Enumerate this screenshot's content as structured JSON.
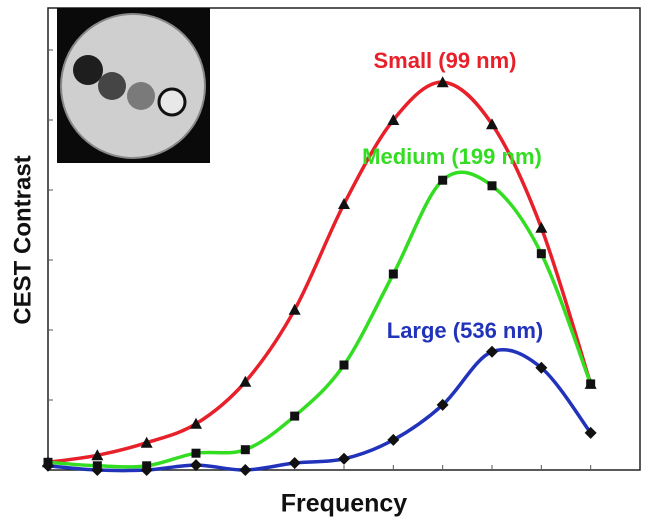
{
  "chart_data": {
    "type": "line",
    "x_label": "Frequency",
    "y_label": "CEST Contrast",
    "x": [
      0,
      1,
      2,
      3,
      4,
      5,
      6,
      7,
      8,
      9,
      10,
      11
    ],
    "series": [
      {
        "name": "Small (99 nm)",
        "color": "#e8202a",
        "marker": "triangle",
        "values": [
          0.11,
          0.21,
          0.39,
          0.66,
          1.26,
          2.29,
          3.8,
          5.0,
          5.54,
          4.94,
          3.46,
          1.23
        ]
      },
      {
        "name": "Medium (199 nm)",
        "color": "#33dd22",
        "marker": "square",
        "values": [
          0.11,
          0.06,
          0.06,
          0.24,
          0.29,
          0.77,
          1.5,
          2.8,
          4.14,
          4.06,
          3.09,
          1.23
        ]
      },
      {
        "name": "Large (536 nm)",
        "color": "#2233bb",
        "marker": "diamond",
        "values": [
          0.06,
          0,
          0,
          0.07,
          0,
          0.1,
          0.16,
          0.43,
          0.93,
          1.69,
          1.46,
          0.53
        ]
      }
    ],
    "xlim": [
      0,
      12
    ],
    "ylim": [
      0,
      6.6
    ],
    "xticks": [
      1,
      2,
      3,
      4,
      5,
      6,
      7,
      8,
      9,
      10,
      11
    ],
    "yticks": [
      1,
      2,
      3,
      4,
      5,
      6
    ]
  }
}
